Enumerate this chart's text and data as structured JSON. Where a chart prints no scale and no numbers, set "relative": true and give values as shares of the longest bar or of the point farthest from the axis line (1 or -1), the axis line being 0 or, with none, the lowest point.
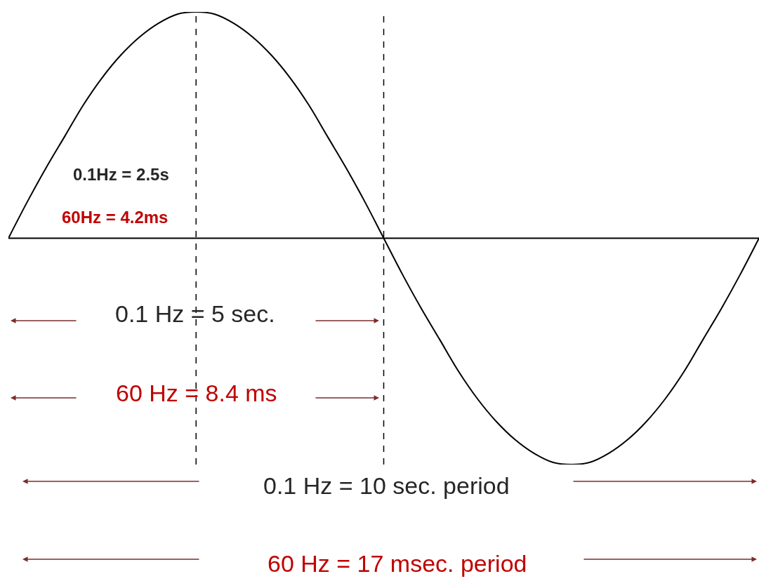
{
  "chart_data": {
    "type": "line",
    "relative": true,
    "color": "#000000",
    "line_style": "solid",
    "marker": "none",
    "grid": false,
    "legend": false,
    "tick_labels": false,
    "categories": [
      null,
      null,
      null,
      null,
      null,
      null,
      null,
      null,
      null,
      null,
      null,
      null,
      null,
      null,
      null,
      null,
      null,
      null,
      null,
      null,
      null,
      null,
      null,
      null,
      null,
      null,
      null,
      null,
      null,
      null,
      null,
      null,
      null,
      null,
      null,
      null,
      null,
      null,
      null,
      null,
      null
    ],
    "values": [
      0,
      0.16,
      0.31,
      0.45,
      0.59,
      0.71,
      0.81,
      0.89,
      0.95,
      0.99,
      1,
      0.99,
      0.95,
      0.89,
      0.81,
      0.71,
      0.59,
      0.45,
      0.31,
      0.16,
      0,
      -0.16,
      -0.31,
      -0.45,
      -0.59,
      -0.71,
      -0.81,
      -0.89,
      -0.95,
      -0.99,
      -1,
      -0.99,
      -0.95,
      -0.89,
      -0.81,
      -0.71,
      -0.59,
      -0.45,
      -0.31,
      -0.16,
      0
    ],
    "annotations": [
      "0.1Hz = 2.5s",
      "60Hz = 4.2ms",
      "0.1 Hz = 5 sec.",
      "60 Hz = 8.4 ms",
      "0.1 Hz = 10 sec. period",
      "60 Hz = 17 msec. period"
    ]
  }
}
